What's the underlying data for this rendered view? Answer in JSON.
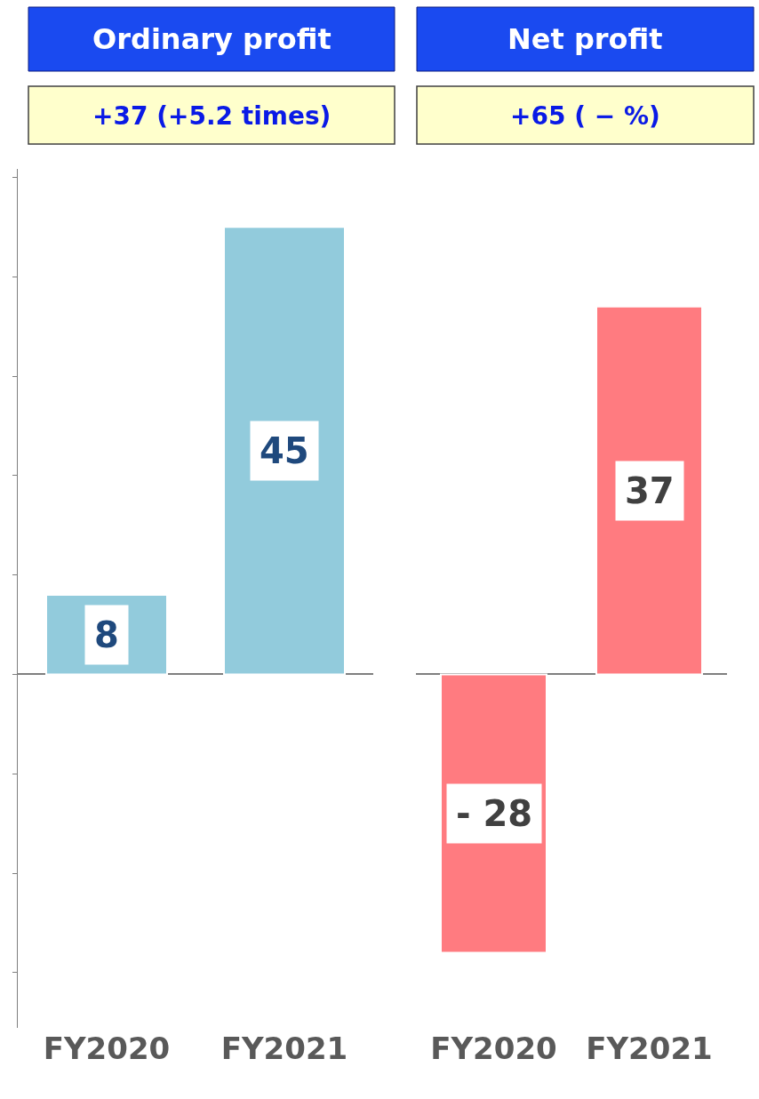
{
  "chart_data": [
    {
      "type": "bar",
      "title": "Ordinary profit",
      "subtitle": "+37 (+5.2 times)",
      "categories": [
        "FY2020",
        "FY2021"
      ],
      "values": [
        8,
        45
      ],
      "color": "#92cbdc",
      "data_labels": true,
      "tick_labels": "x"
    },
    {
      "type": "bar",
      "title": "Net profit",
      "subtitle": "+65 ( − %)",
      "categories": [
        "FY2020",
        "FY2021"
      ],
      "values": [
        -28,
        37
      ],
      "color": "#ff7b80",
      "value_labels": [
        "- 28",
        "37"
      ],
      "tick_labels": "x"
    }
  ]
}
